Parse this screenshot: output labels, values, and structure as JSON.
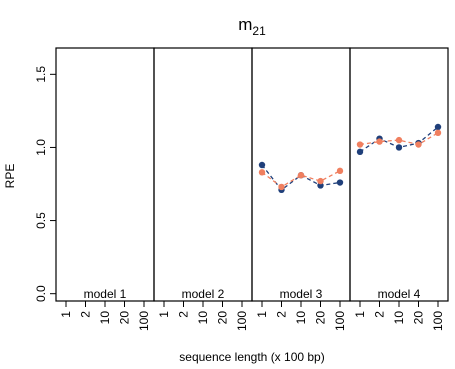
{
  "chart_data": {
    "type": "line",
    "title": "m",
    "title_subscript": "21",
    "xlabel": "sequence length (x 100 bp)",
    "ylabel": "RPE",
    "ylim": [
      -0.05,
      1.68
    ],
    "yticks": [
      "0.0",
      "0.5",
      "1.0",
      "1.5"
    ],
    "ytick_values": [
      0.0,
      0.5,
      1.0,
      1.5
    ],
    "categories": [
      "1",
      "2",
      "10",
      "20",
      "100"
    ],
    "panels": [
      {
        "label": "model 1",
        "series": [
          {
            "color": "#1f3f7a",
            "values": []
          },
          {
            "color": "#f07f5f",
            "values": []
          }
        ]
      },
      {
        "label": "model 2",
        "series": [
          {
            "color": "#1f3f7a",
            "values": []
          },
          {
            "color": "#f07f5f",
            "values": []
          }
        ]
      },
      {
        "label": "model 3",
        "series": [
          {
            "color": "#1f3f7a",
            "values": [
              0.88,
              0.71,
              0.81,
              0.74,
              0.76
            ]
          },
          {
            "color": "#f07f5f",
            "values": [
              0.83,
              0.73,
              0.81,
              0.77,
              0.84
            ]
          }
        ]
      },
      {
        "label": "model 4",
        "series": [
          {
            "color": "#1f3f7a",
            "values": [
              0.97,
              1.06,
              1.0,
              1.03,
              1.14
            ]
          },
          {
            "color": "#f07f5f",
            "values": [
              1.02,
              1.04,
              1.05,
              1.02,
              1.1
            ]
          }
        ]
      }
    ]
  }
}
